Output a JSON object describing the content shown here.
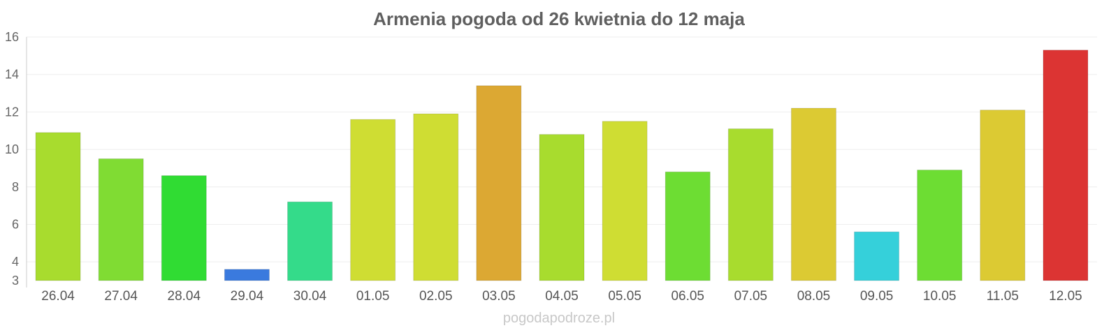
{
  "chart_data": {
    "type": "bar",
    "title": "Armenia pogoda od 26 kwietnia do 12 maja",
    "xlabel": "",
    "ylabel": "",
    "ylim": [
      3,
      16
    ],
    "yticks": [
      3,
      4,
      6,
      8,
      10,
      12,
      14,
      16
    ],
    "grid": true,
    "categories": [
      "26.04",
      "27.04",
      "28.04",
      "29.04",
      "30.04",
      "01.05",
      "02.05",
      "03.05",
      "04.05",
      "05.05",
      "06.05",
      "07.05",
      "08.05",
      "09.05",
      "10.05",
      "11.05",
      "12.05"
    ],
    "values": [
      10.9,
      9.5,
      8.6,
      3.6,
      7.2,
      11.6,
      11.9,
      13.4,
      10.8,
      11.5,
      8.8,
      11.1,
      12.2,
      5.6,
      8.9,
      12.1,
      15.3
    ],
    "colors": [
      "#a8dc2e",
      "#80dc33",
      "#30dc33",
      "#3a7ade",
      "#34db8a",
      "#cfdd33",
      "#cfdd33",
      "#dca833",
      "#a8dc2e",
      "#cfdd33",
      "#6ddd33",
      "#a8dc2e",
      "#dcca33",
      "#35d0da",
      "#6ddd33",
      "#dcca33",
      "#dc3433"
    ]
  },
  "watermark": "pogodapodroze.pl"
}
